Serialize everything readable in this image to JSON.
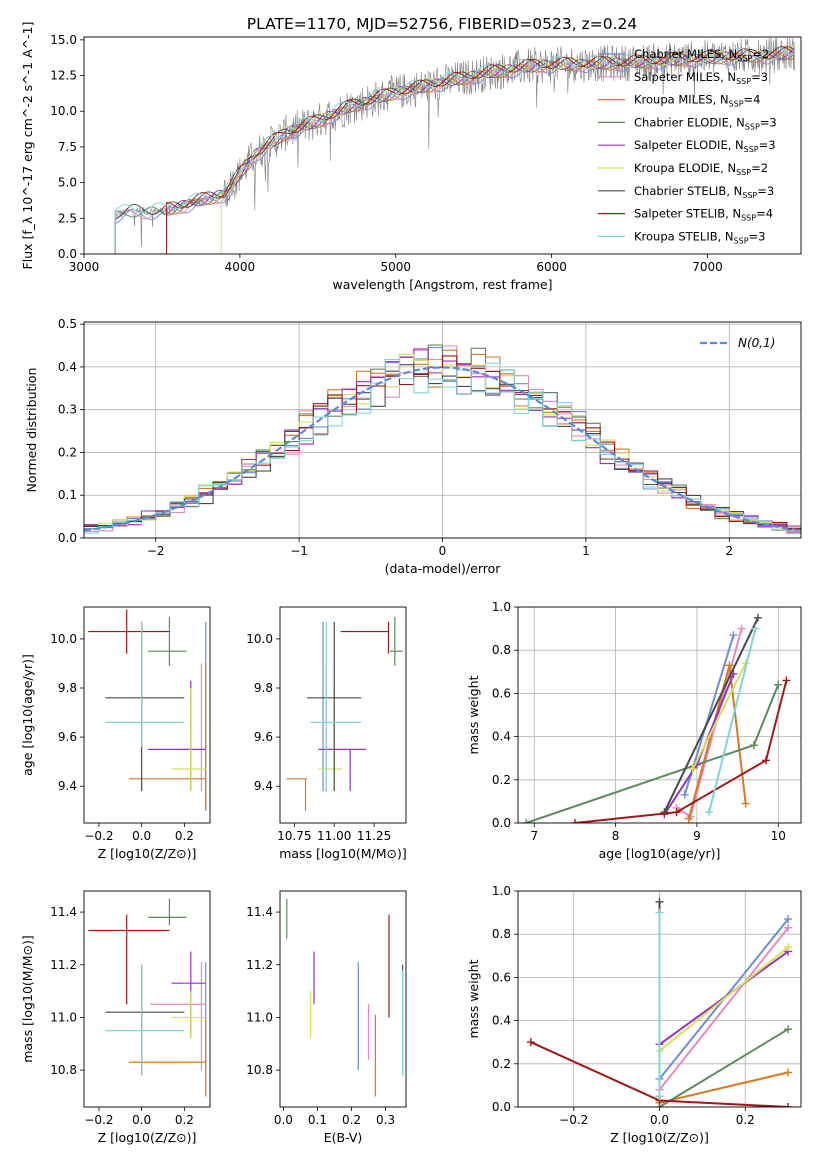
{
  "figure_title": "PLATE=1170, MJD=52756, FIBERID=0523, z=0.24",
  "models": [
    {
      "name": "Chabrier MILES",
      "nssp": "2",
      "color": "#6a8fd8"
    },
    {
      "name": "Salpeter MILES",
      "nssp": "3",
      "color": "#e889c2"
    },
    {
      "name": "Kroupa MILES",
      "nssp": "4",
      "color": "#d8781f"
    },
    {
      "name": "Chabrier ELODIE",
      "nssp": "3",
      "color": "#5e8a5e"
    },
    {
      "name": "Salpeter ELODIE",
      "nssp": "3",
      "color": "#9a32c0"
    },
    {
      "name": "Kroupa ELODIE",
      "nssp": "2",
      "color": "#d6e05a"
    },
    {
      "name": "Chabrier STELIB",
      "nssp": "3",
      "color": "#4a4a4a"
    },
    {
      "name": "Salpeter STELIB",
      "nssp": "4",
      "color": "#a01818"
    },
    {
      "name": "Kroupa STELIB",
      "nssp": "3",
      "color": "#7fd6dc"
    }
  ],
  "chart_data": [
    {
      "id": "spectrum",
      "type": "line",
      "xlabel": "wavelength [Angstrom, rest frame]",
      "ylabel": "Flux [f_λ 10^-17 erg cm^-2 s^-1 A^-1]",
      "xlim": [
        3000,
        7600
      ],
      "ylim": [
        0,
        15.2
      ],
      "xticks": [
        3000,
        4000,
        5000,
        6000,
        7000
      ],
      "yticks": [
        0.0,
        2.5,
        5.0,
        7.5,
        10.0,
        12.5,
        15.0
      ],
      "ytick_labels": [
        "0.0",
        "2.5",
        "5.0",
        "7.5",
        "10.0",
        "12.5",
        "15.0"
      ],
      "legend": "upper right",
      "data_trend": {
        "x": [
          3200,
          3300,
          3500,
          3700,
          3900,
          4100,
          4300,
          4500,
          4700,
          5000,
          5300,
          5600,
          5900,
          6200,
          6500,
          6800,
          7100,
          7400,
          7550
        ],
        "y": [
          2.7,
          3.0,
          3.0,
          3.6,
          4.2,
          7.0,
          8.5,
          9.3,
          10.3,
          11.3,
          12.0,
          12.7,
          13.2,
          13.3,
          13.4,
          13.6,
          13.8,
          13.9,
          14.1
        ]
      },
      "model_starts": {
        "x": [
          3200,
          3200,
          3530,
          3200,
          3530,
          3880,
          3200,
          3530,
          3200
        ]
      }
    },
    {
      "id": "residuals",
      "type": "histogram",
      "xlabel": "(data-model)/error",
      "ylabel": "Normed distribution",
      "xlim": [
        -2.5,
        2.5
      ],
      "ylim": [
        0,
        0.505
      ],
      "xticks": [
        -2,
        -1,
        0,
        1,
        2
      ],
      "yticks": [
        0.0,
        0.1,
        0.2,
        0.3,
        0.4,
        0.5
      ],
      "ytick_labels": [
        "0.0",
        "0.1",
        "0.2",
        "0.3",
        "0.4",
        "0.5"
      ],
      "reference_label": "N(0,1)",
      "reference_color": "#5b8bd8",
      "legend": "upper right",
      "grid": true
    },
    {
      "id": "age_vs_Z",
      "type": "errorbar",
      "xlabel": "Z [log10(Z/Z⊙)]",
      "ylabel": "age [log10(age/yr)]",
      "xlim": [
        -0.27,
        0.32
      ],
      "ylim": [
        9.25,
        10.13
      ],
      "xticks": [
        -0.2,
        0.0,
        0.2
      ],
      "xtick_labels": [
        "−0.2",
        "0.0",
        "0.2"
      ],
      "yticks": [
        9.4,
        9.6,
        9.8,
        10.0
      ],
      "ytick_labels": [
        "9.4",
        "9.6",
        "9.8",
        "10.0"
      ],
      "points": [
        {
          "m": 0,
          "x": 0.3,
          "y": 9.58,
          "xl": 0.3,
          "xh": 0.3,
          "yl": 9.3,
          "yh": 10.07
        },
        {
          "m": 1,
          "x": 0.28,
          "y": 9.47,
          "xl": 0.28,
          "xh": 0.28,
          "yl": 9.38,
          "yh": 9.9
        },
        {
          "m": 2,
          "x": 0.3,
          "y": 9.43,
          "xl": -0.06,
          "xh": 0.3,
          "yl": 9.3,
          "yh": 9.9
        },
        {
          "m": 3,
          "x": 0.13,
          "y": 9.95,
          "xl": 0.03,
          "xh": 0.21,
          "yl": 9.89,
          "yh": 10.09
        },
        {
          "m": 4,
          "x": 0.23,
          "y": 9.55,
          "xl": 0.03,
          "xh": 0.3,
          "yl": 9.38,
          "yh": 9.83
        },
        {
          "m": 5,
          "x": 0.23,
          "y": 9.47,
          "xl": 0.14,
          "xh": 0.3,
          "yl": 9.38,
          "yh": 9.8
        },
        {
          "m": 6,
          "x": 0.0,
          "y": 9.76,
          "xl": -0.17,
          "xh": 0.2,
          "yl": 9.38,
          "yh": 10.07
        },
        {
          "m": 7,
          "x": -0.07,
          "y": 10.03,
          "xl": -0.25,
          "xh": 0.13,
          "yl": 9.94,
          "yh": 10.12
        },
        {
          "m": 8,
          "x": 0.0,
          "y": 9.66,
          "xl": -0.17,
          "xh": 0.2,
          "yl": 9.56,
          "yh": 10.07
        }
      ]
    },
    {
      "id": "age_vs_mass",
      "type": "errorbar",
      "xlabel": "mass [log10(M/M⊙)]",
      "ylabel": "",
      "xlim": [
        10.66,
        11.45
      ],
      "ylim": [
        9.25,
        10.13
      ],
      "xticks": [
        10.75,
        11.0,
        11.25
      ],
      "xtick_labels": [
        "10.75",
        "11.00",
        "11.25"
      ],
      "yticks": [
        9.4,
        9.6,
        9.8,
        10.0
      ],
      "ytick_labels": [
        "9.4",
        "9.6",
        "9.8",
        "10.0"
      ],
      "points": [
        {
          "m": 0,
          "x": 10.93,
          "y": 9.58,
          "xl": 10.93,
          "xh": 10.93,
          "yl": 9.38,
          "yh": 10.07
        },
        {
          "m": 1,
          "x": 10.95,
          "y": 9.47,
          "xl": 10.95,
          "xh": 10.95,
          "yl": 9.38,
          "yh": 9.9
        },
        {
          "m": 2,
          "x": 10.82,
          "y": 9.43,
          "xl": 10.7,
          "xh": 10.83,
          "yl": 9.3,
          "yh": 9.43
        },
        {
          "m": 3,
          "x": 11.38,
          "y": 9.95,
          "xl": 11.35,
          "xh": 11.43,
          "yl": 9.89,
          "yh": 10.09
        },
        {
          "m": 4,
          "x": 11.1,
          "y": 9.55,
          "xl": 10.9,
          "xh": 11.2,
          "yl": 9.38,
          "yh": 9.55
        },
        {
          "m": 5,
          "x": 11.0,
          "y": 9.47,
          "xl": 10.9,
          "xh": 11.05,
          "yl": 9.38,
          "yh": 9.8
        },
        {
          "m": 6,
          "x": 11.0,
          "y": 9.76,
          "xl": 10.83,
          "xh": 11.17,
          "yl": 9.38,
          "yh": 10.07
        },
        {
          "m": 7,
          "x": 11.34,
          "y": 10.03,
          "xl": 11.04,
          "xh": 11.34,
          "yl": 9.94,
          "yh": 10.07
        },
        {
          "m": 8,
          "x": 10.95,
          "y": 9.66,
          "xl": 10.85,
          "xh": 11.17,
          "yl": 9.38,
          "yh": 10.07
        }
      ]
    },
    {
      "id": "weight_vs_age",
      "type": "line",
      "xlabel": "age [log10(age/yr)]",
      "ylabel": "mass weight",
      "xlim": [
        6.8,
        10.28
      ],
      "ylim": [
        0,
        1.0
      ],
      "xticks": [
        7,
        8,
        9,
        10
      ],
      "xtick_labels": [
        "7",
        "8",
        "9",
        "10"
      ],
      "yticks": [
        0.0,
        0.2,
        0.4,
        0.6,
        0.8,
        1.0
      ],
      "ytick_labels": [
        "0.0",
        "0.2",
        "0.4",
        "0.6",
        "0.8",
        "1.0"
      ],
      "grid": true,
      "series": [
        {
          "m": 0,
          "x": [
            8.85,
            9.45
          ],
          "y": [
            0.13,
            0.87
          ]
        },
        {
          "m": 1,
          "x": [
            8.75,
            8.92,
            9.55
          ],
          "y": [
            0.07,
            0.03,
            0.9
          ]
        },
        {
          "m": 2,
          "x": [
            8.9,
            9.4,
            9.6
          ],
          "y": [
            0.02,
            0.73,
            0.09
          ]
        },
        {
          "m": 3,
          "x": [
            6.9,
            9.7,
            10.0
          ],
          "y": [
            0.0,
            0.36,
            0.64
          ]
        },
        {
          "m": 4,
          "x": [
            8.6,
            9.0,
            9.45
          ],
          "y": [
            0.04,
            0.27,
            0.69
          ]
        },
        {
          "m": 5,
          "x": [
            8.95,
            9.6
          ],
          "y": [
            0.25,
            0.74
          ]
        },
        {
          "m": 6,
          "x": [
            8.6,
            9.75
          ],
          "y": [
            0.05,
            0.95
          ]
        },
        {
          "m": 7,
          "x": [
            7.5,
            8.75,
            9.85,
            10.1
          ],
          "y": [
            0.0,
            0.05,
            0.29,
            0.66
          ]
        },
        {
          "m": 8,
          "x": [
            9.15,
            9.72
          ],
          "y": [
            0.05,
            0.9
          ]
        }
      ]
    },
    {
      "id": "mass_vs_Z",
      "type": "errorbar",
      "xlabel": "Z [log10(Z/Z⊙)]",
      "ylabel": "mass [log10(M/M⊙)]",
      "xlim": [
        -0.27,
        0.32
      ],
      "ylim": [
        10.66,
        11.48
      ],
      "xticks": [
        -0.2,
        0.0,
        0.2
      ],
      "xtick_labels": [
        "−0.2",
        "0.0",
        "0.2"
      ],
      "yticks": [
        10.8,
        11.0,
        11.2,
        11.4
      ],
      "ytick_labels": [
        "10.8",
        "11.0",
        "11.2",
        "11.4"
      ],
      "points": [
        {
          "m": 0,
          "x": 0.3,
          "y": 10.95,
          "xl": 0.3,
          "xh": 0.3,
          "yl": 10.8,
          "yh": 11.21
        },
        {
          "m": 1,
          "x": 0.28,
          "y": 11.05,
          "xl": 0.04,
          "xh": 0.3,
          "yl": 10.8,
          "yh": 11.21
        },
        {
          "m": 2,
          "x": 0.3,
          "y": 10.83,
          "xl": -0.06,
          "xh": 0.3,
          "yl": 10.7,
          "yh": 11.0
        },
        {
          "m": 3,
          "x": 0.13,
          "y": 11.38,
          "xl": 0.03,
          "xh": 0.21,
          "yl": 11.35,
          "yh": 11.45
        },
        {
          "m": 4,
          "x": 0.23,
          "y": 11.13,
          "xl": 0.14,
          "xh": 0.3,
          "yl": 10.92,
          "yh": 11.25
        },
        {
          "m": 5,
          "x": 0.23,
          "y": 11.0,
          "xl": 0.14,
          "xh": 0.3,
          "yl": 10.92,
          "yh": 11.1
        },
        {
          "m": 6,
          "x": 0.0,
          "y": 11.02,
          "xl": -0.17,
          "xh": 0.2,
          "yl": 10.78,
          "yh": 11.2
        },
        {
          "m": 7,
          "x": -0.07,
          "y": 11.33,
          "xl": -0.25,
          "xh": 0.13,
          "yl": 11.05,
          "yh": 11.39
        },
        {
          "m": 8,
          "x": 0.0,
          "y": 10.95,
          "xl": -0.17,
          "xh": 0.2,
          "yl": 10.78,
          "yh": 11.2
        }
      ]
    },
    {
      "id": "mass_vs_ebv",
      "type": "errorbar",
      "xlabel": "E(B-V)",
      "ylabel": "",
      "xlim": [
        -0.01,
        0.36
      ],
      "ylim": [
        10.66,
        11.48
      ],
      "xticks": [
        0.0,
        0.1,
        0.2,
        0.3
      ],
      "xtick_labels": [
        "0.0",
        "0.1",
        "0.2",
        "0.3"
      ],
      "yticks": [
        10.8,
        11.0,
        11.2,
        11.4
      ],
      "ytick_labels": [
        "10.8",
        "11.0",
        "11.2",
        "11.4"
      ],
      "points": [
        {
          "m": 0,
          "x": 0.22,
          "y": 11.0,
          "xl": 0.22,
          "xh": 0.22,
          "yl": 10.8,
          "yh": 11.21
        },
        {
          "m": 1,
          "x": 0.25,
          "y": 10.95,
          "xl": 0.25,
          "xh": 0.25,
          "yl": 10.84,
          "yh": 11.05
        },
        {
          "m": 2,
          "x": 0.27,
          "y": 10.85,
          "xl": 0.27,
          "xh": 0.27,
          "yl": 10.7,
          "yh": 11.01
        },
        {
          "m": 3,
          "x": 0.01,
          "y": 11.38,
          "xl": 0.01,
          "xh": 0.01,
          "yl": 11.3,
          "yh": 11.45
        },
        {
          "m": 4,
          "x": 0.09,
          "y": 11.15,
          "xl": 0.09,
          "xh": 0.09,
          "yl": 11.05,
          "yh": 11.25
        },
        {
          "m": 5,
          "x": 0.08,
          "y": 11.0,
          "xl": 0.08,
          "xh": 0.08,
          "yl": 10.92,
          "yh": 11.1
        },
        {
          "m": 6,
          "x": 0.35,
          "y": 11.0,
          "xl": 0.35,
          "xh": 0.35,
          "yl": 10.78,
          "yh": 11.2
        },
        {
          "m": 7,
          "x": 0.31,
          "y": 11.2,
          "xl": 0.31,
          "xh": 0.31,
          "yl": 11.0,
          "yh": 11.39
        },
        {
          "m": 8,
          "x": 0.35,
          "y": 11.0,
          "xl": 0.35,
          "xh": 0.35,
          "yl": 10.78,
          "yh": 11.18
        }
      ]
    },
    {
      "id": "weight_vs_Z",
      "type": "line",
      "xlabel": "Z [log10(Z/Z⊙)]",
      "ylabel": "mass weight",
      "xlim": [
        -0.33,
        0.33
      ],
      "ylim": [
        0,
        1.0
      ],
      "xticks": [
        -0.2,
        0.0,
        0.2
      ],
      "xtick_labels": [
        "−0.2",
        "0.0",
        "0.2"
      ],
      "yticks": [
        0.0,
        0.2,
        0.4,
        0.6,
        0.8,
        1.0
      ],
      "ytick_labels": [
        "0.0",
        "0.2",
        "0.4",
        "0.6",
        "0.8",
        "1.0"
      ],
      "grid": true,
      "series": [
        {
          "m": 0,
          "x": [
            0.0,
            0.3
          ],
          "y": [
            0.13,
            0.87
          ]
        },
        {
          "m": 1,
          "x": [
            0.0,
            0.3
          ],
          "y": [
            0.08,
            0.83
          ]
        },
        {
          "m": 2,
          "x": [
            0.0,
            0.3
          ],
          "y": [
            0.02,
            0.16
          ]
        },
        {
          "m": 3,
          "x": [
            0.0,
            0.3
          ],
          "y": [
            0.0,
            0.36
          ]
        },
        {
          "m": 4,
          "x": [
            0.0,
            0.3
          ],
          "y": [
            0.29,
            0.72
          ]
        },
        {
          "m": 5,
          "x": [
            0.0,
            0.3
          ],
          "y": [
            0.26,
            0.74
          ]
        },
        {
          "m": 6,
          "x": [
            0.0,
            0.0
          ],
          "y": [
            0.05,
            0.95
          ]
        },
        {
          "m": 7,
          "x": [
            -0.3,
            0.0,
            0.3
          ],
          "y": [
            0.3,
            0.03,
            0.0
          ]
        },
        {
          "m": 8,
          "x": [
            0.0,
            0.0
          ],
          "y": [
            0.05,
            0.9
          ]
        }
      ]
    }
  ]
}
